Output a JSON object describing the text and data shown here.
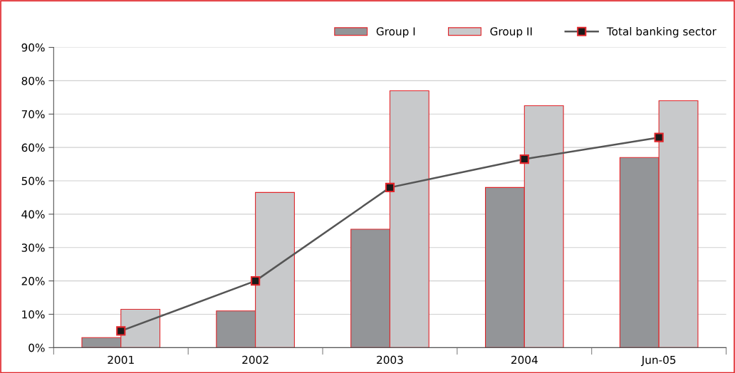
{
  "chart_data": {
    "type": "bar",
    "categories": [
      "2001",
      "2002",
      "2003",
      "2004",
      "Jun-05"
    ],
    "series": [
      {
        "name": "Group I",
        "color": "#939598",
        "values": [
          3,
          11,
          35.5,
          48,
          57
        ]
      },
      {
        "name": "Group II",
        "color": "#c8c9cb",
        "values": [
          11.5,
          46.5,
          77,
          72.5,
          74
        ]
      },
      {
        "name": "Total banking sector",
        "type": "line",
        "color": "#555555",
        "values": [
          5,
          20,
          48,
          56.5,
          63
        ]
      }
    ],
    "ylim": [
      0,
      90
    ],
    "yticks": [
      {
        "value": 0,
        "label": "0%"
      },
      {
        "value": 10,
        "label": "10%"
      },
      {
        "value": 20,
        "label": "20%"
      },
      {
        "value": 30,
        "label": "30%"
      },
      {
        "value": 40,
        "label": "40%"
      },
      {
        "value": 50,
        "label": "50%"
      },
      {
        "value": 60,
        "label": "60%"
      },
      {
        "value": 70,
        "label": "70%"
      },
      {
        "value": 80,
        "label": "80%"
      },
      {
        "value": 90,
        "label": "90%"
      }
    ],
    "grid": "y",
    "legend": "top right",
    "marker": "square"
  }
}
